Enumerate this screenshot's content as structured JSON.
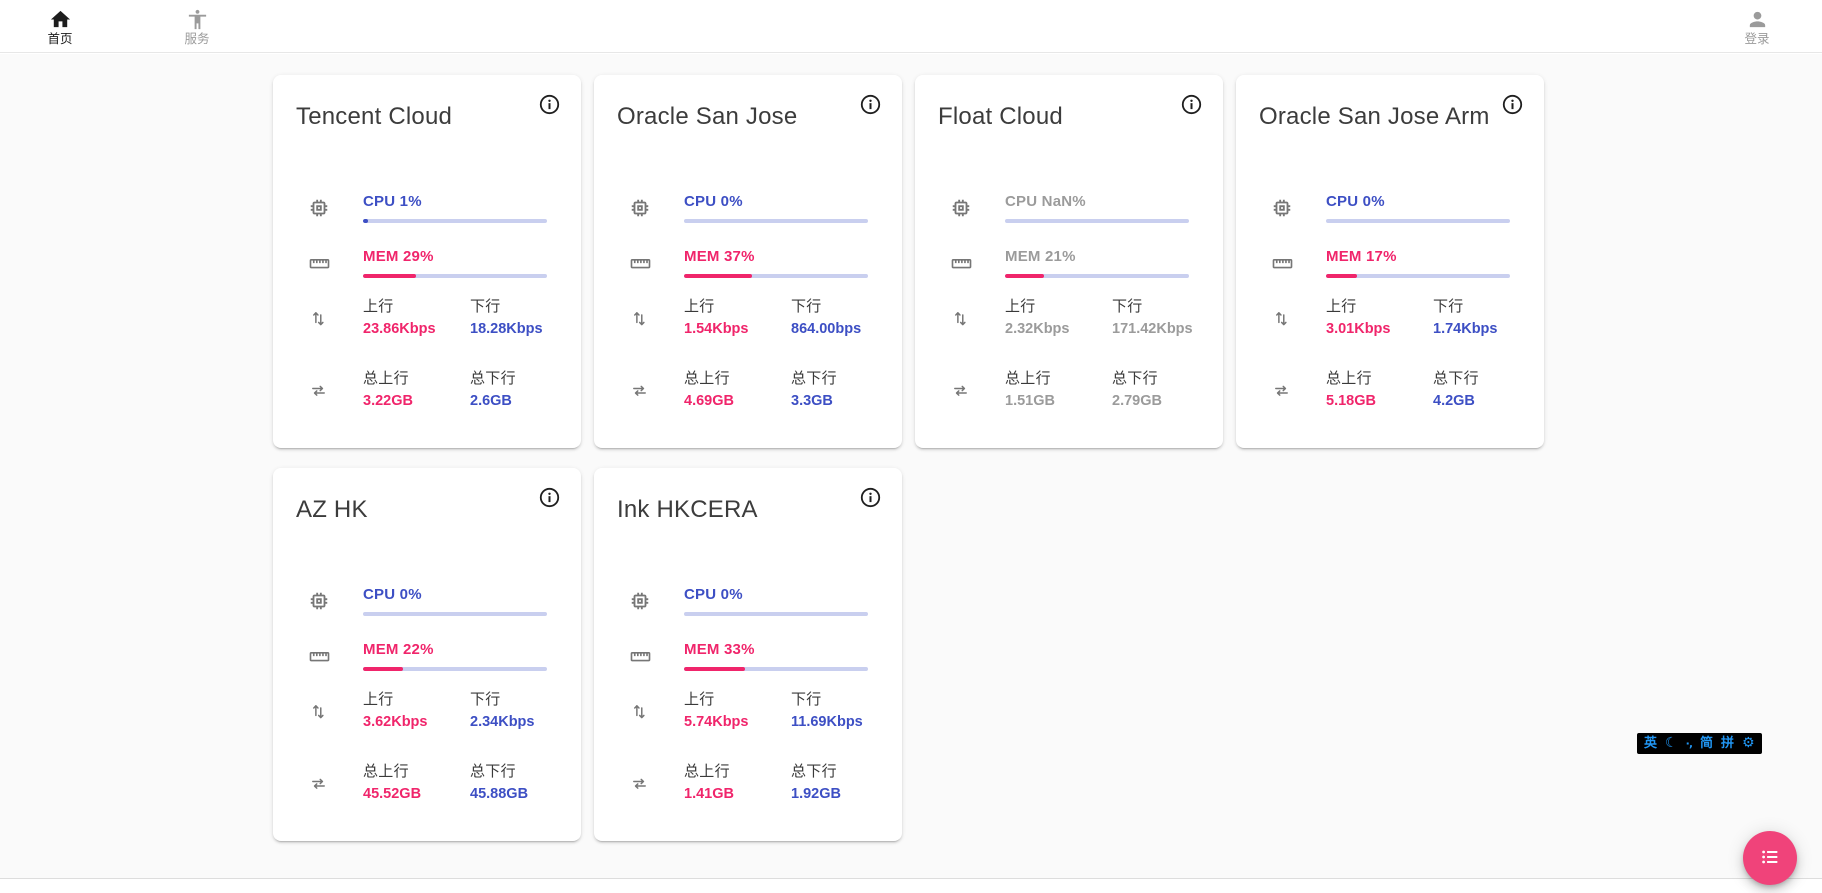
{
  "nav": {
    "home": {
      "label": "首页"
    },
    "services": {
      "label": "服务"
    },
    "login": {
      "label": "登录"
    }
  },
  "labels": {
    "cpu": "CPU",
    "mem": "MEM",
    "up": "上行",
    "down": "下行",
    "total_up": "总上行",
    "total_down": "总下行"
  },
  "servers": [
    {
      "name": "Tencent Cloud",
      "cpu": "1%",
      "cpu_pct": 1,
      "mem": "29%",
      "mem_pct": 29,
      "up": "23.86Kbps",
      "down": "18.28Kbps",
      "total_up": "3.22GB",
      "total_down": "2.6GB",
      "offline": false
    },
    {
      "name": "Oracle San Jose",
      "cpu": "0%",
      "cpu_pct": 0,
      "mem": "37%",
      "mem_pct": 37,
      "up": "1.54Kbps",
      "down": "864.00bps",
      "total_up": "4.69GB",
      "total_down": "3.3GB",
      "offline": false
    },
    {
      "name": "Float Cloud",
      "cpu": "NaN%",
      "cpu_pct": 0,
      "mem": "21%",
      "mem_pct": 21,
      "up": "2.32Kbps",
      "down": "171.42Kbps",
      "total_up": "1.51GB",
      "total_down": "2.79GB",
      "offline": true
    },
    {
      "name": "Oracle San Jose Arm",
      "cpu": "0%",
      "cpu_pct": 0,
      "mem": "17%",
      "mem_pct": 17,
      "up": "3.01Kbps",
      "down": "1.74Kbps",
      "total_up": "5.18GB",
      "total_down": "4.2GB",
      "offline": false
    },
    {
      "name": "AZ HK",
      "cpu": "0%",
      "cpu_pct": 0,
      "mem": "22%",
      "mem_pct": 22,
      "up": "3.62Kbps",
      "down": "2.34Kbps",
      "total_up": "45.52GB",
      "total_down": "45.88GB",
      "offline": false
    },
    {
      "name": "Ink HKCERA",
      "cpu": "0%",
      "cpu_pct": 0,
      "mem": "33%",
      "mem_pct": 33,
      "up": "5.74Kbps",
      "down": "11.69Kbps",
      "total_up": "1.41GB",
      "total_down": "1.92GB",
      "offline": false
    }
  ],
  "ime": {
    "items": [
      "英",
      "☾",
      "·‚",
      "简",
      "拼",
      "⚙"
    ]
  },
  "colors": {
    "accent_blue": "#3d4fc4",
    "accent_pink": "#f0256b",
    "bar_track": "#c9cfef",
    "fab_pink": "#f0437a",
    "ime_blue": "#2196f3"
  }
}
